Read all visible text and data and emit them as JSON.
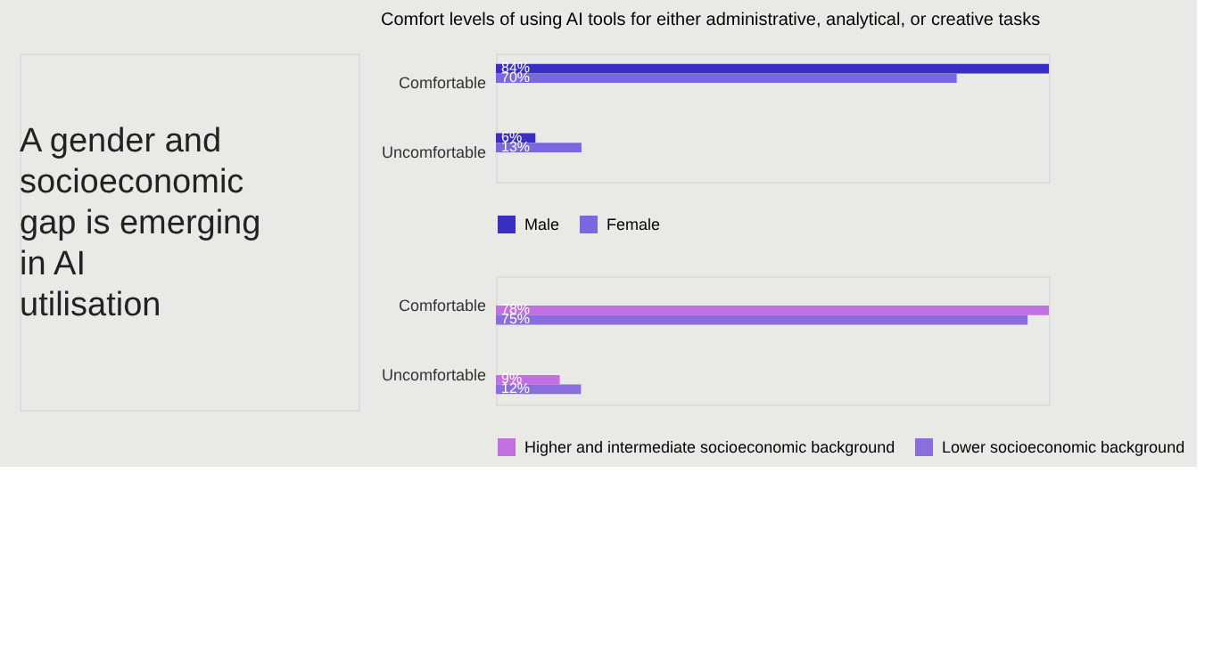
{
  "chart_data": [
    {
      "type": "other",
      "title": "A gender and socioeconomic gap is emerging in AI utilisation"
    },
    {
      "type": "bar",
      "orientation": "horizontal",
      "title": "Comfort levels of using AI tools for either administrative, analytical, or creative tasks",
      "categories": [
        "Comfortable",
        "Uncomfortable"
      ],
      "legend": "bottom",
      "series": [
        {
          "name": "Male",
          "color": "#3a2fc4",
          "values": [
            84,
            6
          ],
          "value_labels": [
            "84%",
            "6%"
          ]
        },
        {
          "name": "Female",
          "color": "#7b68e0",
          "values": [
            70,
            13
          ],
          "value_labels": [
            "70%",
            "13%"
          ]
        }
      ]
    },
    {
      "type": "bar",
      "orientation": "horizontal",
      "categories": [
        "Comfortable",
        "Uncomfortable"
      ],
      "legend": "bottom",
      "series": [
        {
          "name": "Higher and intermediate socioeconomic background",
          "color": "#c070e0",
          "values": [
            78,
            9
          ],
          "value_labels": [
            "78%",
            "9%"
          ]
        },
        {
          "name": "Lower socioeconomic background",
          "color": "#8a6ee0",
          "values": [
            75,
            12
          ],
          "value_labels": [
            "75%",
            "12%"
          ]
        }
      ]
    }
  ]
}
